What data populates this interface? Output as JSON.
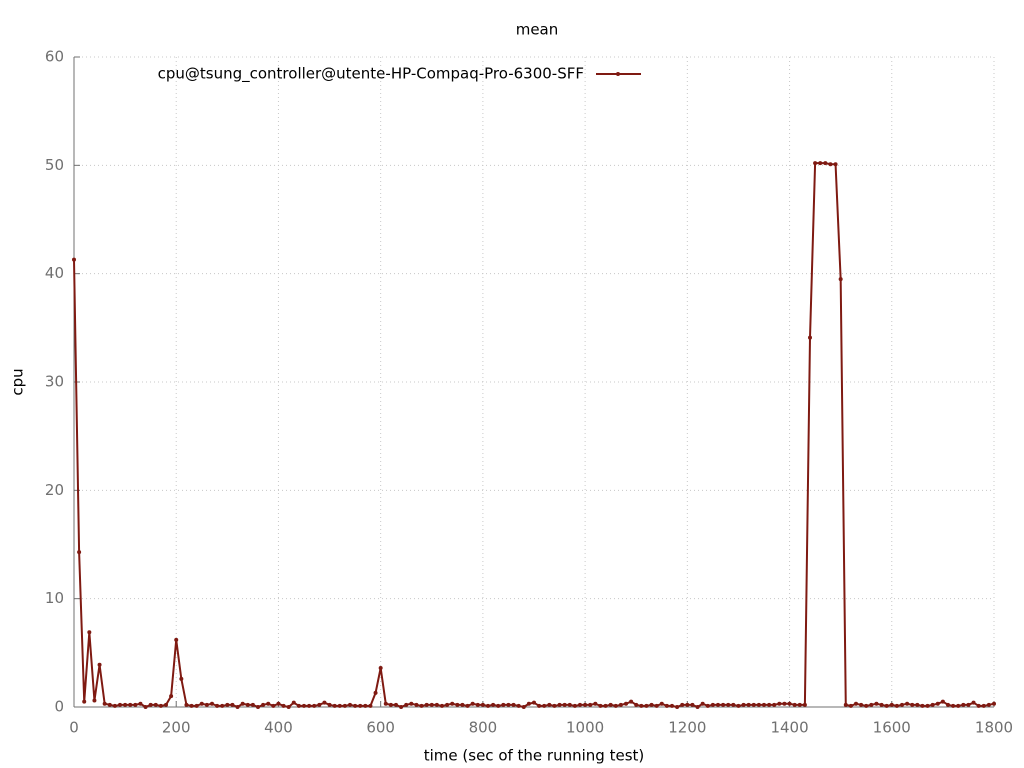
{
  "chart_data": {
    "type": "line",
    "title": "mean",
    "x_label": "time (sec of the running test)",
    "y_label": "cpu",
    "x": [
      0,
      10,
      20,
      30,
      40,
      50,
      60,
      70,
      80,
      90,
      100,
      110,
      120,
      130,
      140,
      150,
      160,
      170,
      180,
      190,
      200,
      210,
      220,
      230,
      240,
      250,
      260,
      270,
      280,
      290,
      300,
      310,
      320,
      330,
      340,
      350,
      360,
      370,
      380,
      390,
      400,
      410,
      420,
      430,
      440,
      450,
      460,
      470,
      480,
      490,
      500,
      510,
      520,
      530,
      540,
      550,
      560,
      570,
      580,
      590,
      600,
      610,
      620,
      630,
      640,
      650,
      660,
      670,
      680,
      690,
      700,
      710,
      720,
      730,
      740,
      750,
      760,
      770,
      780,
      790,
      800,
      810,
      820,
      830,
      840,
      850,
      860,
      870,
      880,
      890,
      900,
      910,
      920,
      930,
      940,
      950,
      960,
      970,
      980,
      990,
      1000,
      1010,
      1020,
      1030,
      1040,
      1050,
      1060,
      1070,
      1080,
      1090,
      1100,
      1110,
      1120,
      1130,
      1140,
      1150,
      1160,
      1170,
      1180,
      1190,
      1200,
      1210,
      1220,
      1230,
      1240,
      1250,
      1260,
      1270,
      1280,
      1290,
      1300,
      1310,
      1320,
      1330,
      1340,
      1350,
      1360,
      1370,
      1380,
      1390,
      1400,
      1410,
      1420,
      1430,
      1440,
      1450,
      1460,
      1470,
      1480,
      1490,
      1500,
      1510,
      1520,
      1530,
      1540,
      1550,
      1560,
      1570,
      1580,
      1590,
      1600,
      1610,
      1620,
      1630,
      1640,
      1650,
      1660,
      1670,
      1680,
      1690,
      1700,
      1710,
      1720,
      1730,
      1740,
      1750,
      1760,
      1770,
      1780,
      1790,
      1800
    ],
    "series": [
      {
        "name": "cpu@tsung_controller@utente-HP-Compaq-Pro-6300-SFF",
        "color": "#7f1a12",
        "values": [
          41.3,
          14.3,
          0.5,
          6.9,
          0.6,
          3.9,
          0.3,
          0.2,
          0.1,
          0.2,
          0.2,
          0.2,
          0.2,
          0.3,
          0.0,
          0.2,
          0.2,
          0.1,
          0.2,
          1.0,
          6.2,
          2.6,
          0.2,
          0.1,
          0.1,
          0.3,
          0.2,
          0.3,
          0.1,
          0.1,
          0.2,
          0.2,
          0.0,
          0.3,
          0.2,
          0.2,
          0.0,
          0.2,
          0.3,
          0.1,
          0.3,
          0.1,
          0.0,
          0.4,
          0.1,
          0.1,
          0.1,
          0.1,
          0.2,
          0.4,
          0.2,
          0.1,
          0.1,
          0.1,
          0.2,
          0.1,
          0.1,
          0.1,
          0.1,
          1.3,
          3.6,
          0.3,
          0.2,
          0.2,
          0.0,
          0.2,
          0.3,
          0.2,
          0.1,
          0.2,
          0.2,
          0.2,
          0.1,
          0.2,
          0.3,
          0.2,
          0.2,
          0.1,
          0.3,
          0.2,
          0.2,
          0.1,
          0.2,
          0.1,
          0.2,
          0.2,
          0.2,
          0.1,
          0.0,
          0.3,
          0.4,
          0.1,
          0.1,
          0.2,
          0.1,
          0.2,
          0.2,
          0.2,
          0.1,
          0.2,
          0.2,
          0.2,
          0.3,
          0.1,
          0.1,
          0.2,
          0.1,
          0.2,
          0.3,
          0.5,
          0.2,
          0.1,
          0.1,
          0.2,
          0.1,
          0.3,
          0.1,
          0.1,
          0.0,
          0.2,
          0.2,
          0.2,
          0.0,
          0.3,
          0.1,
          0.2,
          0.2,
          0.2,
          0.2,
          0.2,
          0.1,
          0.2,
          0.2,
          0.2,
          0.2,
          0.2,
          0.2,
          0.2,
          0.3,
          0.3,
          0.3,
          0.2,
          0.2,
          0.2,
          34.1,
          50.2,
          50.2,
          50.2,
          50.1,
          50.1,
          39.5,
          0.2,
          0.1,
          0.3,
          0.2,
          0.1,
          0.2,
          0.3,
          0.2,
          0.1,
          0.2,
          0.1,
          0.2,
          0.3,
          0.2,
          0.2,
          0.1,
          0.1,
          0.2,
          0.3,
          0.5,
          0.2,
          0.1,
          0.1,
          0.2,
          0.2,
          0.4,
          0.1,
          0.1,
          0.2,
          0.3
        ]
      }
    ],
    "xlim": [
      0,
      1800
    ],
    "xticks": [
      0,
      200,
      400,
      600,
      800,
      1000,
      1200,
      1400,
      1600,
      1800
    ],
    "ylim": [
      0,
      60
    ],
    "yticks": [
      0,
      10,
      20,
      30,
      40,
      50,
      60
    ],
    "grid": true
  }
}
